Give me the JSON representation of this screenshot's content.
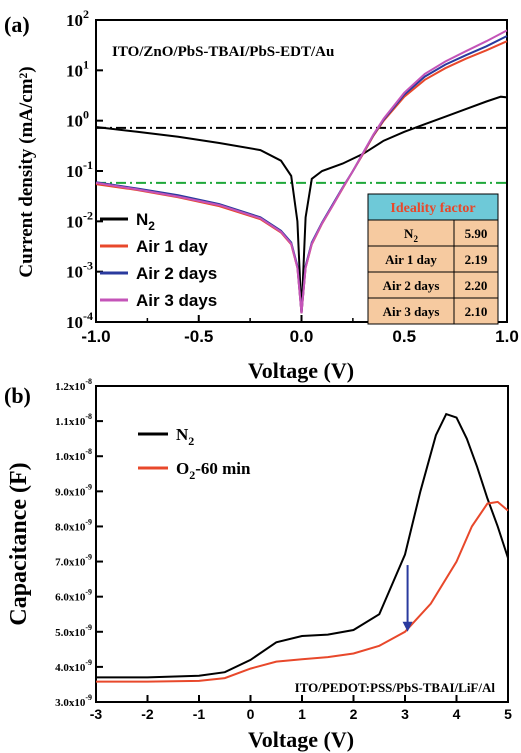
{
  "chart_data": [
    {
      "panel_label": "(a)",
      "type": "line",
      "annotation": "ITO/ZnO/PbS-TBAI/PbS-EDT/Au",
      "xlabel": "Voltage (V)",
      "ylabel": "Current density (mA/cm²)",
      "xlim": [
        -1.0,
        1.0
      ],
      "ylim_log10": [
        -4,
        2
      ],
      "yscale": "log",
      "xticks": [
        "-1.0",
        "-0.5",
        "0.0",
        "0.5",
        "1.0"
      ],
      "yticks": [
        {
          "base": "10",
          "exp": "-4"
        },
        {
          "base": "10",
          "exp": "-3"
        },
        {
          "base": "10",
          "exp": "-2"
        },
        {
          "base": "10",
          "exp": "-1"
        },
        {
          "base": "10",
          "exp": "0"
        },
        {
          "base": "10",
          "exp": "1"
        },
        {
          "base": "10",
          "exp": "2"
        }
      ],
      "legend_position": "bottom-left",
      "series": [
        {
          "name": "N",
          "sub": "2",
          "color": "#000000",
          "x": [
            -1.0,
            -0.8,
            -0.6,
            -0.4,
            -0.2,
            -0.1,
            -0.05,
            -0.02,
            0.0,
            0.02,
            0.05,
            0.1,
            0.2,
            0.3,
            0.4,
            0.5,
            0.6,
            0.7,
            0.8,
            0.9,
            0.97,
            1.0
          ],
          "y": [
            0.75,
            0.6,
            0.48,
            0.36,
            0.26,
            0.16,
            0.08,
            0.01,
            0.00015,
            0.012,
            0.07,
            0.1,
            0.14,
            0.22,
            0.4,
            0.6,
            0.85,
            1.2,
            1.7,
            2.4,
            3.0,
            2.9
          ]
        },
        {
          "name": "Air 1 day",
          "color": "#e8482b",
          "x": [
            -1.0,
            -0.8,
            -0.6,
            -0.4,
            -0.2,
            -0.1,
            -0.05,
            -0.02,
            0.0,
            0.02,
            0.05,
            0.1,
            0.15,
            0.2,
            0.25,
            0.3,
            0.35,
            0.4,
            0.5,
            0.6,
            0.7,
            0.8,
            0.9,
            1.0
          ],
          "y": [
            0.055,
            0.042,
            0.03,
            0.02,
            0.011,
            0.006,
            0.0035,
            0.0012,
            0.00015,
            0.0012,
            0.0035,
            0.009,
            0.02,
            0.045,
            0.1,
            0.22,
            0.5,
            1.0,
            3.0,
            6.5,
            11,
            17,
            25,
            38
          ]
        },
        {
          "name": "Air 2 days",
          "color": "#2a3a9e",
          "x": [
            -1.0,
            -0.8,
            -0.6,
            -0.4,
            -0.2,
            -0.1,
            -0.05,
            -0.02,
            0.0,
            0.02,
            0.05,
            0.1,
            0.15,
            0.2,
            0.25,
            0.3,
            0.35,
            0.4,
            0.5,
            0.6,
            0.7,
            0.8,
            0.9,
            1.0
          ],
          "y": [
            0.06,
            0.045,
            0.033,
            0.022,
            0.012,
            0.0065,
            0.0038,
            0.0013,
            0.00015,
            0.0013,
            0.0038,
            0.0095,
            0.021,
            0.047,
            0.1,
            0.23,
            0.52,
            1.05,
            3.3,
            7.5,
            13,
            20,
            30,
            48
          ]
        },
        {
          "name": "Air 3 days",
          "color": "#c454b8",
          "x": [
            -1.0,
            -0.8,
            -0.6,
            -0.4,
            -0.2,
            -0.1,
            -0.05,
            -0.02,
            0.0,
            0.02,
            0.05,
            0.1,
            0.15,
            0.2,
            0.25,
            0.3,
            0.35,
            0.4,
            0.5,
            0.6,
            0.7,
            0.8,
            0.9,
            1.0
          ],
          "y": [
            0.058,
            0.043,
            0.031,
            0.021,
            0.0115,
            0.0062,
            0.0036,
            0.0012,
            0.00015,
            0.0012,
            0.0036,
            0.0092,
            0.02,
            0.046,
            0.1,
            0.23,
            0.53,
            1.1,
            3.6,
            8.5,
            15,
            24,
            38,
            62
          ]
        }
      ],
      "reference_lines": [
        {
          "y": 0.72,
          "color": "#000000",
          "style": "dash-dot"
        },
        {
          "y": 0.058,
          "color": "#1fa83a",
          "style": "dash-dot"
        }
      ],
      "table": {
        "header": "Ideality factor",
        "header_bg": "#6ec9d8",
        "header_color": "#e8482b",
        "cell_bg": "#f6caa0",
        "rows": [
          {
            "label": "N",
            "sub": "2",
            "value": "5.90"
          },
          {
            "label": "Air 1 day",
            "sub": "",
            "value": "2.19"
          },
          {
            "label": "Air 2 days",
            "sub": "",
            "value": "2.20"
          },
          {
            "label": "Air 3 days",
            "sub": "",
            "value": "2.10"
          }
        ]
      }
    },
    {
      "panel_label": "(b)",
      "type": "line",
      "annotation": "ITO/PEDOT:PSS/PbS-TBAI/LiF/Al",
      "xlabel": "Voltage (V)",
      "ylabel": "Capacitance (F)",
      "xlim": [
        -3,
        5
      ],
      "ylim": [
        3e-09,
        1.2e-08
      ],
      "xticks": [
        "-3",
        "-2",
        "-1",
        "0",
        "1",
        "2",
        "3",
        "4",
        "5"
      ],
      "yticks": [
        {
          "mant": "3.0x10",
          "exp": "-9"
        },
        {
          "mant": "4.0x10",
          "exp": "-9"
        },
        {
          "mant": "5.0x10",
          "exp": "-9"
        },
        {
          "mant": "6.0x10",
          "exp": "-9"
        },
        {
          "mant": "7.0x10",
          "exp": "-9"
        },
        {
          "mant": "8.0x10",
          "exp": "-9"
        },
        {
          "mant": "9.0x10",
          "exp": "-9"
        },
        {
          "mant": "1.0x10",
          "exp": "-8"
        },
        {
          "mant": "1.1x10",
          "exp": "-8"
        },
        {
          "mant": "1.2x10",
          "exp": "-8"
        }
      ],
      "legend_position": "top-left",
      "arrow": {
        "x": 3.05,
        "y_from": 6.9e-09,
        "y_to": 5e-09,
        "color": "#2a3a9e"
      },
      "series": [
        {
          "name": "N",
          "sub": "2",
          "color": "#000000",
          "x": [
            -3,
            -2,
            -1,
            -0.5,
            0,
            0.5,
            1,
            1.5,
            2,
            2.5,
            3,
            3.3,
            3.6,
            3.8,
            4.0,
            4.2,
            4.4,
            4.6,
            4.8,
            5.0
          ],
          "y": [
            3.7e-09,
            3.7e-09,
            3.75e-09,
            3.85e-09,
            4.2e-09,
            4.7e-09,
            4.88e-09,
            4.92e-09,
            5.05e-09,
            5.5e-09,
            7.2e-09,
            9e-09,
            1.06e-08,
            1.12e-08,
            1.11e-08,
            1.05e-08,
            9.7e-09,
            8.8e-09,
            8e-09,
            7.1e-09
          ]
        },
        {
          "name": "O",
          "sub": "2",
          "suffix": "-60 min",
          "color": "#e8482b",
          "x": [
            -3,
            -2,
            -1,
            -0.5,
            0,
            0.5,
            1,
            1.5,
            2,
            2.5,
            3,
            3.5,
            4.0,
            4.3,
            4.6,
            4.8,
            5.0
          ],
          "y": [
            3.58e-09,
            3.58e-09,
            3.6e-09,
            3.68e-09,
            3.95e-09,
            4.15e-09,
            4.22e-09,
            4.28e-09,
            4.38e-09,
            4.6e-09,
            5e-09,
            5.8e-09,
            7e-09,
            8e-09,
            8.65e-09,
            8.7e-09,
            8.45e-09
          ]
        }
      ]
    }
  ]
}
